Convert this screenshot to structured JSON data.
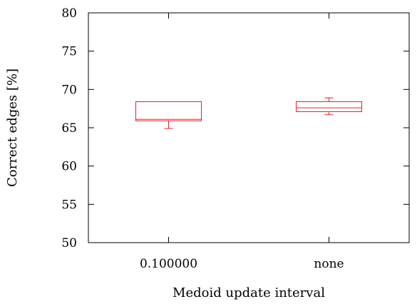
{
  "chart_data": {
    "type": "box",
    "xlabel": "Medoid update interval",
    "ylabel": "Correct edges [%]",
    "ylim": [
      50,
      80
    ],
    "yticks": [
      "50",
      "55",
      "60",
      "65",
      "70",
      "75",
      "80"
    ],
    "categories": [
      "0.100000",
      "none"
    ],
    "boxes": [
      {
        "category": "0.100000",
        "min": 64.9,
        "q1": 65.9,
        "median": 66.1,
        "q3": 68.4,
        "max": 68.4
      },
      {
        "category": "none",
        "min": 66.7,
        "q1": 67.1,
        "median": 67.6,
        "q3": 68.4,
        "max": 68.9
      }
    ],
    "box_color": "#e8202a",
    "grid": false,
    "legend": "none"
  }
}
